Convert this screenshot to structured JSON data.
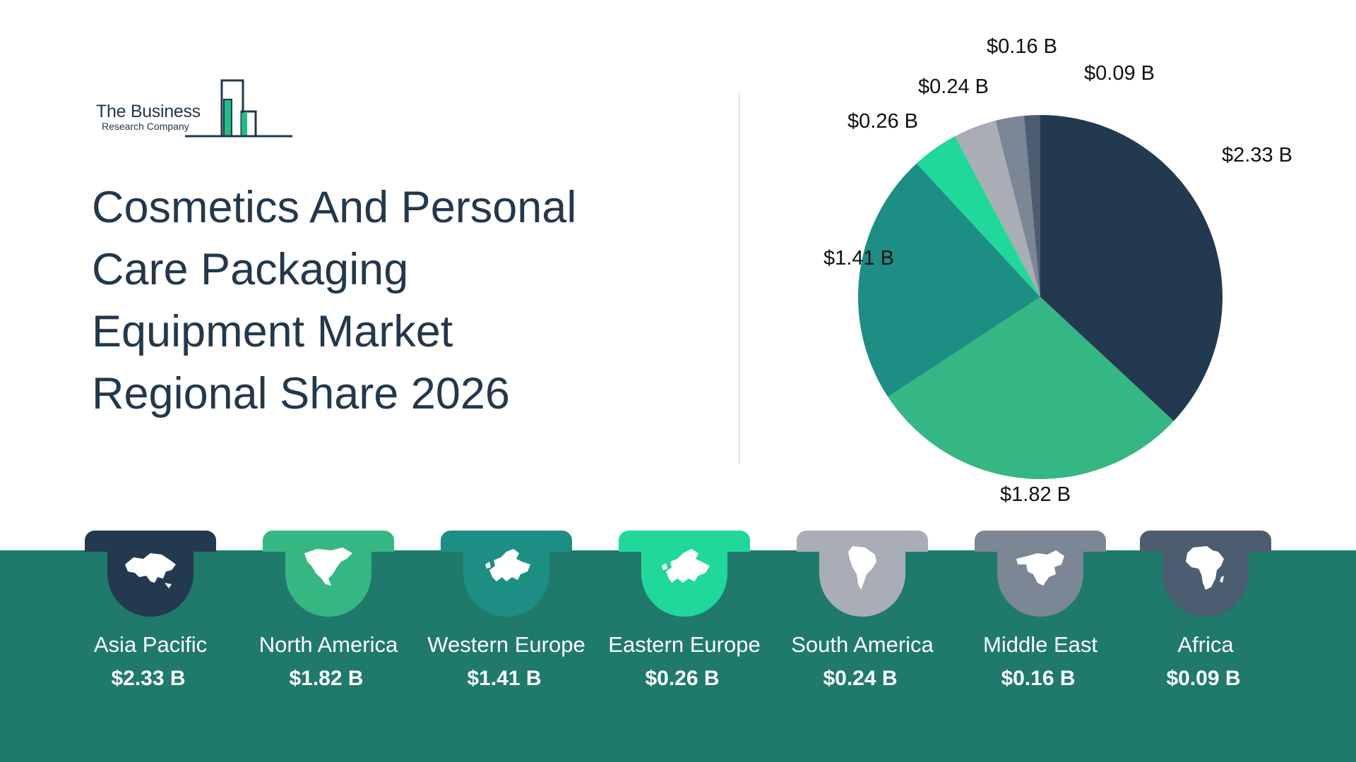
{
  "logo": {
    "name": "The Business",
    "sub": "Research Company",
    "colors": {
      "ink": "#23384d",
      "accent": "#1fbd8a"
    }
  },
  "title": "Cosmetics And Personal Care Packaging Equipment Market Regional Share 2026",
  "colors": {
    "band": "#1f7a6b",
    "title": "#23384d"
  },
  "chart_data": {
    "type": "pie",
    "unit": "$ B",
    "start": "12 o'clock, clockwise",
    "legend": "bottom (region medals)",
    "slices": [
      {
        "label": "Asia Pacific",
        "value": 2.33,
        "display": "$2.33 B",
        "color": "#23394f"
      },
      {
        "label": "North America",
        "value": 1.82,
        "display": "$1.82 B",
        "color": "#35b784"
      },
      {
        "label": "Western Europe",
        "value": 1.41,
        "display": "$1.41 B",
        "color": "#1c8e83"
      },
      {
        "label": "Eastern Europe",
        "value": 0.26,
        "display": "$0.26 B",
        "color": "#1fd89a"
      },
      {
        "label": "South America",
        "value": 0.24,
        "display": "$0.24 B",
        "color": "#a8adb6"
      },
      {
        "label": "Middle East",
        "value": 0.16,
        "display": "$0.16 B",
        "color": "#7b8795"
      },
      {
        "label": "Africa",
        "value": 0.09,
        "display": "$0.09 B",
        "color": "#4d5d70"
      }
    ]
  },
  "regions": [
    {
      "name": "Asia Pacific",
      "value": "$2.33 B",
      "icon": "asia-map-icon",
      "color": "#23394f"
    },
    {
      "name": "North America",
      "value": "$1.82 B",
      "icon": "north-america-map-icon",
      "color": "#35b784"
    },
    {
      "name": "Western Europe",
      "value": "$1.41 B",
      "icon": "western-europe-map-icon",
      "color": "#1c8e83"
    },
    {
      "name": "Eastern Europe",
      "value": "$0.26 B",
      "icon": "eastern-europe-map-icon",
      "color": "#1fd89a"
    },
    {
      "name": "South America",
      "value": "$0.24 B",
      "icon": "south-america-map-icon",
      "color": "#a8adb6"
    },
    {
      "name": "Middle East",
      "value": "$0.16 B",
      "icon": "middle-east-map-icon",
      "color": "#7b8795"
    },
    {
      "name": "Africa",
      "value": "$0.09 B",
      "icon": "africa-map-icon",
      "color": "#4d5d70"
    }
  ]
}
